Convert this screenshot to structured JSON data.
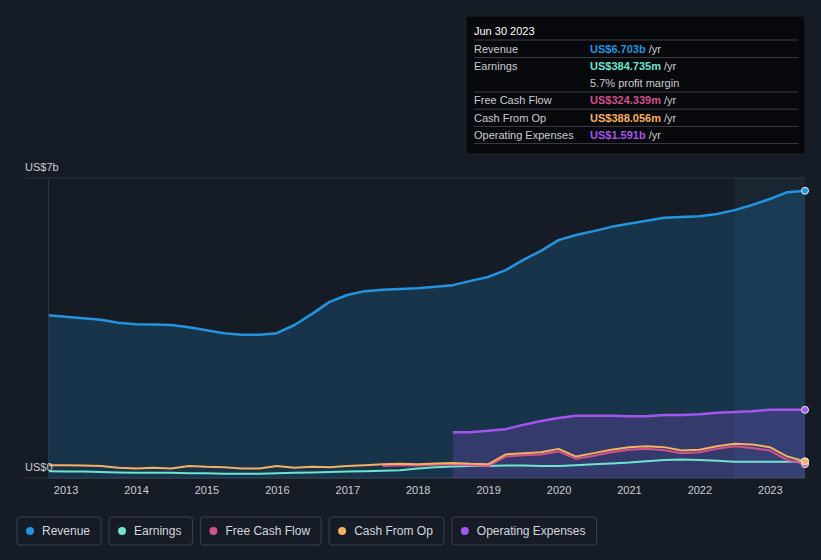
{
  "chart_data": {
    "type": "line",
    "x": [
      2012.75,
      2013.0,
      2013.25,
      2013.5,
      2013.75,
      2014.0,
      2014.25,
      2014.5,
      2014.75,
      2015.0,
      2015.25,
      2015.5,
      2015.75,
      2016.0,
      2016.25,
      2016.5,
      2016.75,
      2017.0,
      2017.25,
      2017.5,
      2017.75,
      2018.0,
      2018.25,
      2018.5,
      2018.75,
      2019.0,
      2019.25,
      2019.5,
      2019.75,
      2020.0,
      2020.25,
      2020.5,
      2020.75,
      2021.0,
      2021.25,
      2021.5,
      2021.75,
      2022.0,
      2022.25,
      2022.5,
      2022.75,
      2023.0,
      2023.25,
      2023.5
    ],
    "xlim": [
      2012.75,
      2023.5
    ],
    "xticks": [
      2013,
      2014,
      2015,
      2016,
      2017,
      2018,
      2019,
      2020,
      2021,
      2022,
      2023
    ],
    "ylim": [
      0,
      7
    ],
    "yticks": [
      {
        "value": 0,
        "label": "US$0"
      },
      {
        "value": 7,
        "label": "US$7b"
      }
    ],
    "grid": true,
    "legend": "bottom",
    "highlight_range": [
      2022.5,
      2023.5
    ],
    "series": [
      {
        "name": "Revenue",
        "color": "#2394df",
        "type": "area",
        "values": [
          3.8,
          3.76,
          3.73,
          3.69,
          3.62,
          3.59,
          3.58,
          3.57,
          3.52,
          3.45,
          3.38,
          3.34,
          3.34,
          3.38,
          3.57,
          3.83,
          4.11,
          4.27,
          4.36,
          4.39,
          4.41,
          4.43,
          4.46,
          4.5,
          4.6,
          4.69,
          4.85,
          5.09,
          5.3,
          5.55,
          5.67,
          5.76,
          5.86,
          5.93,
          6.0,
          6.07,
          6.09,
          6.11,
          6.16,
          6.25,
          6.37,
          6.51,
          6.67,
          6.703
        ]
      },
      {
        "name": "Earnings",
        "color": "#6fe3d1",
        "type": "line",
        "values": [
          0.16,
          0.15,
          0.15,
          0.14,
          0.13,
          0.12,
          0.12,
          0.12,
          0.11,
          0.11,
          0.1,
          0.1,
          0.1,
          0.11,
          0.12,
          0.13,
          0.14,
          0.15,
          0.16,
          0.17,
          0.18,
          0.22,
          0.25,
          0.27,
          0.28,
          0.28,
          0.29,
          0.29,
          0.28,
          0.28,
          0.3,
          0.32,
          0.34,
          0.36,
          0.39,
          0.42,
          0.43,
          0.42,
          0.4,
          0.38,
          0.38,
          0.38,
          0.38,
          0.384735
        ]
      },
      {
        "name": "Free Cash Flow",
        "color": "#d4508c",
        "type": "line",
        "values": [
          null,
          null,
          null,
          null,
          null,
          null,
          null,
          null,
          null,
          null,
          null,
          null,
          null,
          null,
          null,
          null,
          null,
          null,
          null,
          0.28,
          0.3,
          0.29,
          0.31,
          0.32,
          0.3,
          0.28,
          0.5,
          0.53,
          0.55,
          0.62,
          0.45,
          0.52,
          0.6,
          0.66,
          0.68,
          0.65,
          0.58,
          0.6,
          0.68,
          0.74,
          0.7,
          0.64,
          0.42,
          0.324339
        ]
      },
      {
        "name": "Cash From Op",
        "color": "#f5b161",
        "type": "line",
        "values": [
          0.3,
          0.3,
          0.29,
          0.28,
          0.24,
          0.22,
          0.24,
          0.22,
          0.28,
          0.26,
          0.25,
          0.22,
          0.22,
          0.28,
          0.24,
          0.26,
          0.25,
          0.28,
          0.3,
          0.32,
          0.33,
          0.32,
          0.34,
          0.35,
          0.33,
          0.32,
          0.55,
          0.58,
          0.6,
          0.68,
          0.5,
          0.58,
          0.66,
          0.72,
          0.74,
          0.72,
          0.64,
          0.66,
          0.74,
          0.8,
          0.78,
          0.72,
          0.5,
          0.388056
        ]
      },
      {
        "name": "Operating Expenses",
        "color": "#a455ef",
        "type": "area",
        "values": [
          null,
          null,
          null,
          null,
          null,
          null,
          null,
          null,
          null,
          null,
          null,
          null,
          null,
          null,
          null,
          null,
          null,
          null,
          null,
          null,
          null,
          null,
          null,
          1.07,
          1.07,
          1.1,
          1.14,
          1.24,
          1.33,
          1.4,
          1.45,
          1.45,
          1.45,
          1.44,
          1.44,
          1.47,
          1.47,
          1.49,
          1.52,
          1.54,
          1.56,
          1.59,
          1.59,
          1.591
        ]
      }
    ],
    "tooltip": {
      "date": "Jun 30 2023",
      "rows": [
        {
          "label": "Revenue",
          "value": "US$6.703b",
          "unit": "/yr"
        },
        {
          "label": "Earnings",
          "value": "US$384.735m",
          "unit": "/yr"
        },
        {
          "value": "5.7% profit margin"
        },
        {
          "label": "Free Cash Flow",
          "value": "US$324.339m",
          "unit": "/yr"
        },
        {
          "label": "Cash From Op",
          "value": "US$388.056m",
          "unit": "/yr"
        },
        {
          "label": "Operating Expenses",
          "value": "US$1.591b",
          "unit": "/yr"
        }
      ]
    }
  }
}
